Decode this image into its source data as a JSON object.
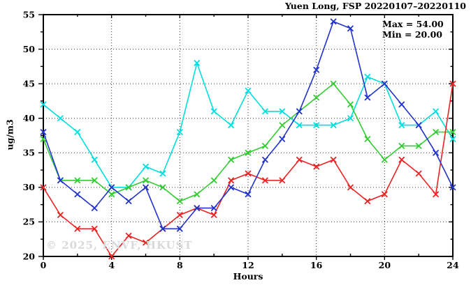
{
  "chart_data": {
    "type": "line",
    "title": "Yuen Long, FSP 20220107–20220110",
    "xlabel": "Hours",
    "ylabel": "ug/m3",
    "xlim": [
      0,
      24
    ],
    "ylim": [
      20,
      55
    ],
    "x_major_ticks": [
      0,
      4,
      8,
      12,
      16,
      20,
      24
    ],
    "x_minor_ticks": [
      2,
      6,
      10,
      14,
      18,
      22
    ],
    "y_major_ticks": [
      20,
      25,
      30,
      35,
      40,
      45,
      50,
      55
    ],
    "y_minor_ticks": [
      22.5,
      27.5,
      32.5,
      37.5,
      42.5,
      47.5,
      52.5
    ],
    "grid": "dotted-at-major-ticks",
    "legend_position": "none",
    "x": [
      0,
      1,
      2,
      3,
      4,
      5,
      6,
      7,
      8,
      9,
      10,
      11,
      12,
      13,
      14,
      15,
      16,
      17,
      18,
      19,
      20,
      21,
      22,
      23,
      24
    ],
    "series": [
      {
        "name": "series-cyan",
        "color": "#00dede",
        "values": [
          42,
          40,
          38,
          34,
          30,
          30,
          33,
          32,
          38,
          48,
          41,
          39,
          44,
          41,
          41,
          39,
          39,
          39,
          40,
          46,
          45,
          39,
          39,
          41,
          37
        ]
      },
      {
        "name": "series-green",
        "color": "#33cc33",
        "values": [
          37,
          31,
          31,
          31,
          29,
          30,
          31,
          30,
          28,
          29,
          31,
          34,
          35,
          36,
          39,
          41,
          43,
          45,
          42,
          37,
          34,
          36,
          36,
          38,
          38
        ]
      },
      {
        "name": "series-red",
        "color": "#ee2222",
        "values": [
          30,
          26,
          24,
          24,
          20,
          23,
          22,
          24,
          26,
          27,
          26,
          31,
          32,
          31,
          31,
          34,
          33,
          34,
          30,
          28,
          29,
          34,
          32,
          29,
          45
        ]
      },
      {
        "name": "series-blue",
        "color": "#2233cc",
        "values": [
          38,
          31,
          29,
          27,
          30,
          28,
          30,
          24,
          24,
          27,
          27,
          30,
          29,
          34,
          37,
          41,
          47,
          54,
          53,
          43,
          45,
          42,
          39,
          35,
          30
        ]
      }
    ],
    "annotations": {
      "max_label": "Max = 54.00",
      "min_label": "Min = 20.00"
    },
    "watermark": "© 2025, ENVF, HKUST",
    "colors": {
      "frame": "#000000",
      "grid": "#333333",
      "watermark_gray": "#d9d9d9"
    }
  }
}
